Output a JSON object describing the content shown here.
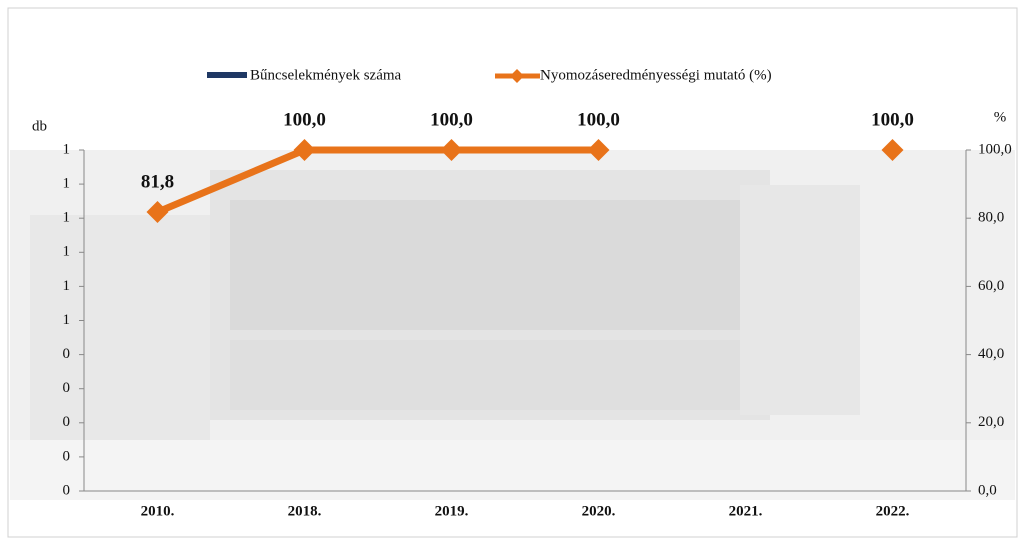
{
  "chart_data": {
    "type": "combo",
    "y_label": "db",
    "y2_label": "%",
    "categories": [
      "2010.",
      "2018.",
      "2019.",
      "2020.",
      "2021.",
      "2022."
    ],
    "series": [
      {
        "name": "Bűncselekmények száma",
        "type": "bar",
        "color": "#1f3864",
        "values": [
          0,
          0,
          0,
          0,
          0,
          0
        ]
      },
      {
        "name": "Nyomozáseredményességi mutató (%)",
        "type": "line",
        "axis": "y2",
        "color": "#e8731a",
        "values": [
          81.8,
          100,
          100,
          100,
          null,
          100
        ],
        "value_labels": [
          "81,8",
          "100,0",
          "100,0",
          "100,0",
          null,
          "100,0"
        ]
      }
    ],
    "ylim": [
      0,
      1
    ],
    "yticks": [
      0,
      {
        "value": 0.1,
        "label": "0"
      },
      {
        "value": 0.2,
        "label": "0"
      },
      {
        "value": 0.3,
        "label": "0"
      },
      {
        "value": 0.4,
        "label": "0"
      },
      {
        "value": 0.5,
        "label": "1"
      },
      {
        "value": 0.6,
        "label": "1"
      },
      {
        "value": 0.7,
        "label": "1"
      },
      {
        "value": 0.8,
        "label": "1"
      },
      {
        "value": 0.9,
        "label": "1"
      },
      1
    ],
    "y2lim": [
      0,
      100
    ],
    "y2ticks": [
      {
        "value": 0,
        "label": "0,0"
      },
      {
        "value": 20,
        "label": "20,0"
      },
      {
        "value": 40,
        "label": "40,0"
      },
      {
        "value": 60,
        "label": "60,0"
      },
      {
        "value": 80,
        "label": "80,0"
      },
      {
        "value": 100,
        "label": "100,0"
      }
    ]
  }
}
